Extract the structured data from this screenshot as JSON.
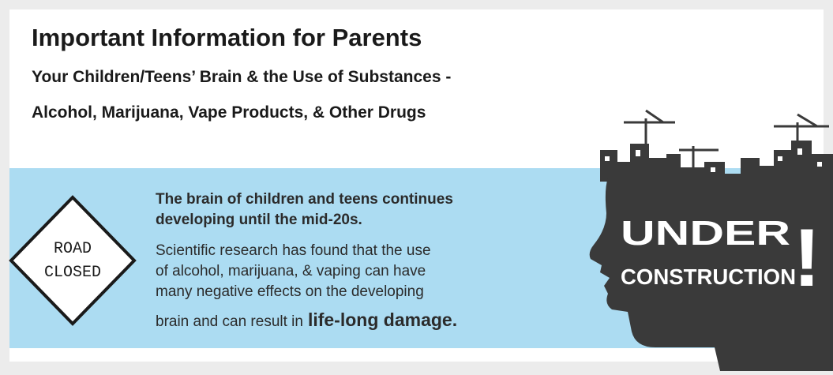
{
  "header": {
    "title": "Important Information for Parents",
    "subtitle_lines": [
      "Your Children/Teens’ Brain & the Use of Substances -",
      "Alcohol, Marijuana, Vape Products, & Other Drugs"
    ]
  },
  "sign": {
    "lines": [
      "ROAD",
      "CLOSED"
    ]
  },
  "body": {
    "intro_lines": [
      "The brain of children and teens continues",
      "developing until the mid-20s."
    ],
    "detail_lines": [
      "Scientific research has found that the use",
      "of alcohol, marijuana, & vaping can have",
      "many negative effects on the developing",
      "brain and can result in"
    ],
    "emphasis": "life-long damage",
    "end": "."
  },
  "graphic": {
    "lines": [
      "UNDER",
      "CONSTRUCTION"
    ],
    "mark": "!"
  }
}
